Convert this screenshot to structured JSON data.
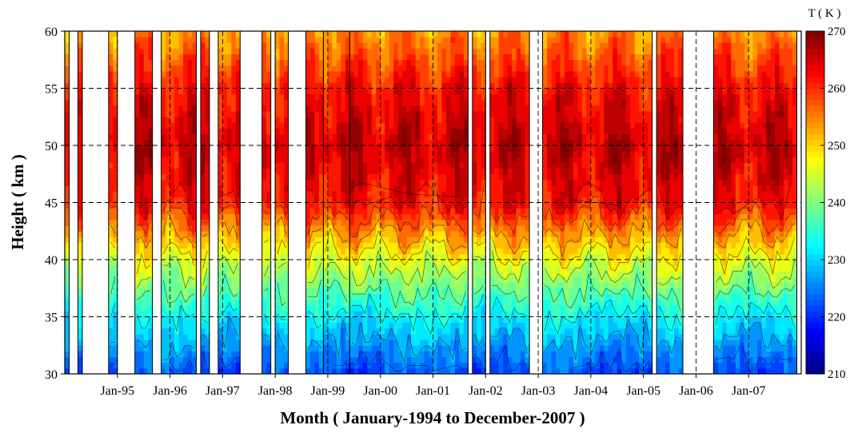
{
  "chart_data": {
    "type": "heatmap",
    "subtype": "filled-contour",
    "xlabel": "Month ( January-1994 to December-2007 )",
    "ylabel": "Height ( km )",
    "x_range": [
      "1994-01",
      "2007-12"
    ],
    "x_ticks": [
      "Jan-95",
      "Jan-96",
      "Jan-97",
      "Jan-98",
      "Jan-99",
      "Jan-00",
      "Jan-01",
      "Jan-02",
      "Jan-03",
      "Jan-04",
      "Jan-05",
      "Jan-06",
      "Jan-07"
    ],
    "ylim": [
      30,
      60
    ],
    "y_ticks": [
      30,
      35,
      40,
      45,
      50,
      55,
      60
    ],
    "colorbar": {
      "title": "T ( K )",
      "range": [
        210,
        270
      ],
      "ticks": [
        210,
        220,
        230,
        240,
        250,
        260,
        270
      ],
      "colormap": "jet",
      "levels_step_K": 2.5
    },
    "grid": "dashed",
    "data_segments": [
      {
        "start": "1994-01",
        "end": "1994-01"
      },
      {
        "start": "1994-04",
        "end": "1994-04"
      },
      {
        "start": "1994-11",
        "end": "1994-12"
      },
      {
        "start": "1995-05",
        "end": "1995-08"
      },
      {
        "start": "1995-11",
        "end": "1996-06"
      },
      {
        "start": "1996-08",
        "end": "1996-09"
      },
      {
        "start": "1996-12",
        "end": "1997-04"
      },
      {
        "start": "1997-10",
        "end": "1997-11"
      },
      {
        "start": "1998-01",
        "end": "1998-03"
      },
      {
        "start": "1998-08",
        "end": "1998-11"
      },
      {
        "start": "1998-12",
        "end": "1999-05"
      },
      {
        "start": "1999-06",
        "end": "2001-08"
      },
      {
        "start": "2001-10",
        "end": "2001-12"
      },
      {
        "start": "2002-02",
        "end": "2002-10"
      },
      {
        "start": "2003-02",
        "end": "2005-02"
      },
      {
        "start": "2005-04",
        "end": "2005-09"
      },
      {
        "start": "2006-05",
        "end": "2007-11"
      }
    ],
    "temperature_profile_K": {
      "heights_km": [
        30,
        35,
        40,
        45,
        50,
        55,
        60
      ],
      "typical_values": [
        222,
        232,
        246,
        262,
        266,
        262,
        254
      ]
    }
  }
}
